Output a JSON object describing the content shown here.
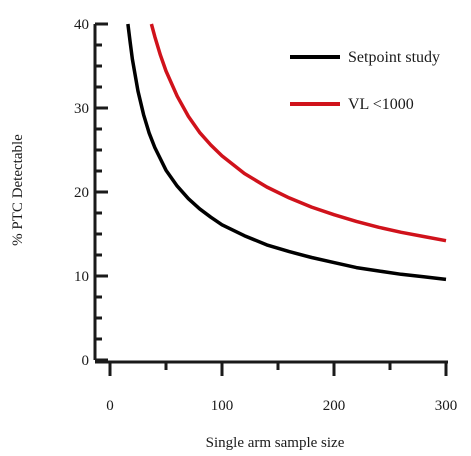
{
  "chart_data": {
    "type": "line",
    "xlabel": "Single arm sample size",
    "ylabel": "% PTC Detectable",
    "xlim": [
      0,
      300
    ],
    "ylim": [
      0,
      40
    ],
    "x_ticks": [
      0,
      100,
      200,
      300
    ],
    "y_ticks": [
      0,
      10,
      20,
      30,
      40
    ],
    "grid": false,
    "legend_position": "top-right",
    "series": [
      {
        "name": "Setpoint study",
        "color": "#000000",
        "x": [
          16,
          18,
          20,
          25,
          30,
          35,
          40,
          50,
          60,
          70,
          80,
          90,
          100,
          120,
          140,
          160,
          180,
          200,
          220,
          240,
          260,
          280,
          300
        ],
        "y": [
          40.0,
          37.8,
          35.8,
          32.0,
          29.2,
          27.0,
          25.3,
          22.6,
          20.7,
          19.2,
          18.0,
          17.0,
          16.1,
          14.8,
          13.7,
          12.9,
          12.2,
          11.6,
          11.0,
          10.6,
          10.2,
          9.9,
          9.6
        ]
      },
      {
        "name": "VL <1000",
        "color": "#d0121b",
        "x": [
          37,
          40,
          45,
          50,
          60,
          70,
          80,
          90,
          100,
          120,
          140,
          160,
          180,
          200,
          220,
          240,
          260,
          280,
          300
        ],
        "y": [
          40.0,
          38.5,
          36.3,
          34.4,
          31.4,
          29.0,
          27.1,
          25.6,
          24.3,
          22.2,
          20.6,
          19.3,
          18.2,
          17.3,
          16.5,
          15.8,
          15.2,
          14.7,
          14.2
        ]
      }
    ]
  }
}
